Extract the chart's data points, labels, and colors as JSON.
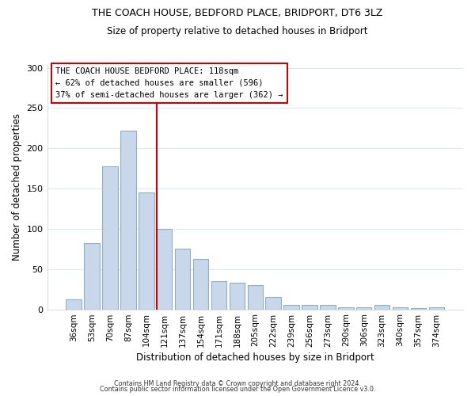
{
  "title": "THE COACH HOUSE, BEDFORD PLACE, BRIDPORT, DT6 3LZ",
  "subtitle": "Size of property relative to detached houses in Bridport",
  "xlabel": "Distribution of detached houses by size in Bridport",
  "ylabel": "Number of detached properties",
  "categories": [
    "36sqm",
    "53sqm",
    "70sqm",
    "87sqm",
    "104sqm",
    "121sqm",
    "137sqm",
    "154sqm",
    "171sqm",
    "188sqm",
    "205sqm",
    "222sqm",
    "239sqm",
    "256sqm",
    "273sqm",
    "290sqm",
    "306sqm",
    "323sqm",
    "340sqm",
    "357sqm",
    "374sqm"
  ],
  "values": [
    12,
    82,
    178,
    222,
    145,
    100,
    75,
    63,
    35,
    33,
    30,
    15,
    5,
    5,
    5,
    3,
    3,
    5,
    3,
    2,
    3
  ],
  "bar_color": "#c8d8ea",
  "bar_edge_color": "#90aec8",
  "red_line_index": 5,
  "red_line_color": "#cc0000",
  "annotation_text": "THE COACH HOUSE BEDFORD PLACE: 118sqm\n← 62% of detached houses are smaller (596)\n37% of semi-detached houses are larger (362) →",
  "annotation_box_color": "#ffffff",
  "annotation_box_edge": "#cc0000",
  "footnote1": "Contains HM Land Registry data © Crown copyright and database right 2024.",
  "footnote2": "Contains public sector information licensed under the Open Government Licence v3.0.",
  "ylim": [
    0,
    305
  ],
  "yticks": [
    0,
    50,
    100,
    150,
    200,
    250,
    300
  ],
  "background_color": "#ffffff",
  "grid_color": "#dde8f0"
}
